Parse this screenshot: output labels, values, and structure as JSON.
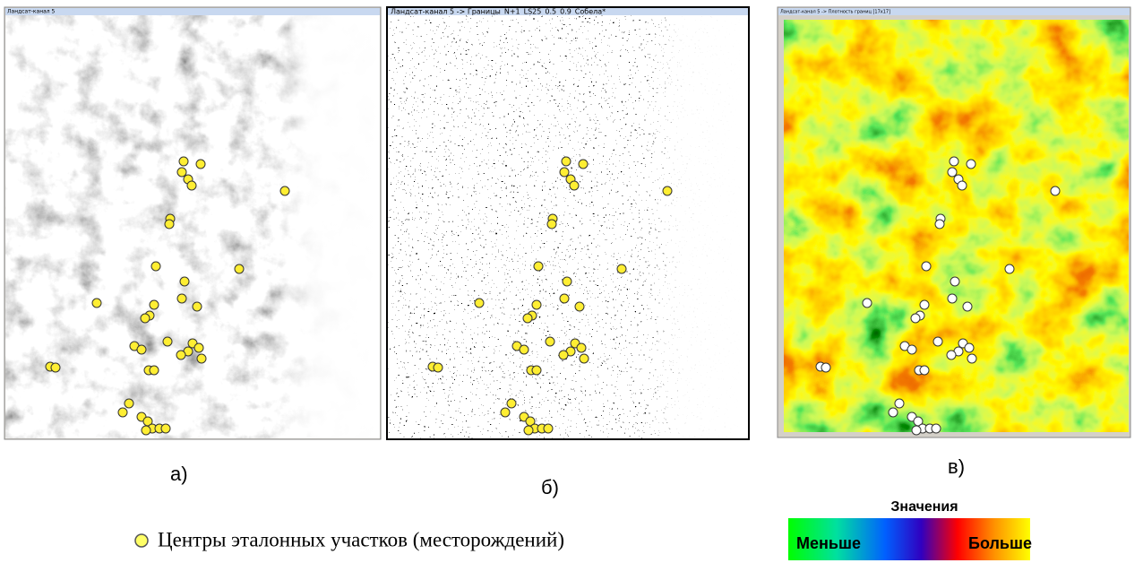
{
  "panels": [
    {
      "title": "Ландсат-канал 5",
      "label": "а)"
    },
    {
      "title": "Ландсат-канал 5 -> Границы_N+1_LS25_0.5_0.9_Собела*",
      "label": "б)"
    },
    {
      "title": "Ландсат-канал 5 -> Плотность границ [17x17]",
      "label": "в)"
    }
  ],
  "legend": {
    "marker": "Центры эталонных участков (месторождений)"
  },
  "colorbar": {
    "title": "Значения",
    "low": "Меньше",
    "high": "Больше"
  }
}
